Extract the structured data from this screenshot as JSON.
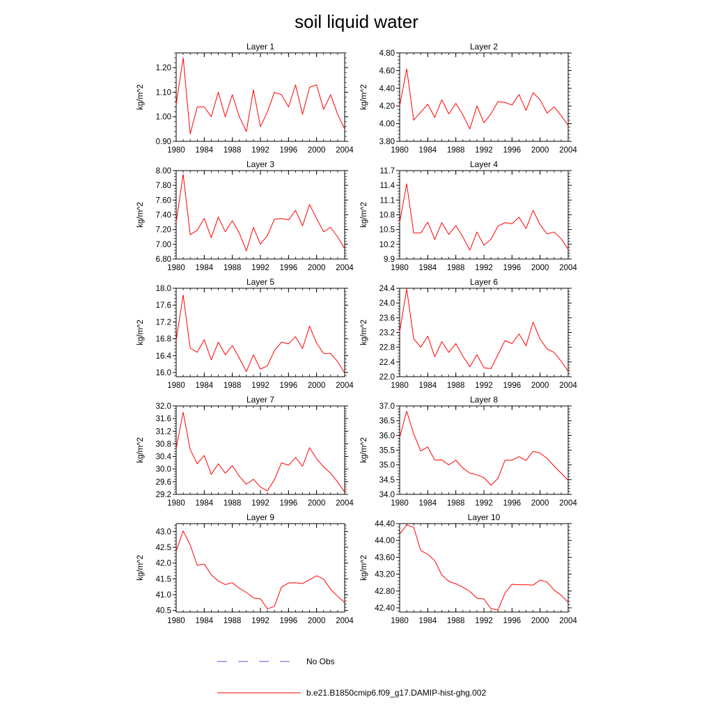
{
  "title": "soil liquid water",
  "chart_data": {
    "type": "line",
    "title": "soil liquid water",
    "x": [
      1980,
      1981,
      1982,
      1983,
      1984,
      1985,
      1986,
      1987,
      1988,
      1989,
      1990,
      1991,
      1992,
      1993,
      1994,
      1995,
      1996,
      1997,
      1998,
      1999,
      2000,
      2001,
      2002,
      2003,
      2004
    ],
    "xlim": [
      1980,
      2004
    ],
    "xticks": [
      "1980",
      "1984",
      "1988",
      "1992",
      "1996",
      "2000",
      "2004"
    ],
    "legend": {
      "placement": "bottom",
      "entries": [
        {
          "label": "No Obs",
          "color": "#5555cc",
          "style": "dashed"
        },
        {
          "label": "b.e21.B1850cmip6.f09_g17.DAMIP-hist-ghg.002",
          "color": "#ff0000",
          "style": "solid"
        }
      ]
    },
    "panels": [
      {
        "title": "Layer 1",
        "ylabel": "kg/m^2",
        "ylim": [
          0.9,
          1.26
        ],
        "yticks": [
          "0.90",
          "1.00",
          "1.10",
          "1.20"
        ],
        "series": [
          {
            "color": "#ff0000",
            "values": [
              1.05,
              1.24,
              0.93,
              1.04,
              1.04,
              1.0,
              1.1,
              1.0,
              1.09,
              1.0,
              0.94,
              1.11,
              0.96,
              1.02,
              1.1,
              1.09,
              1.04,
              1.13,
              1.01,
              1.12,
              1.13,
              1.03,
              1.09,
              1.01,
              0.95
            ]
          }
        ]
      },
      {
        "title": "Layer 2",
        "ylabel": "kg/m^2",
        "ylim": [
          3.8,
          4.8
        ],
        "yticks": [
          "3.80",
          "4.00",
          "4.20",
          "4.40",
          "4.60",
          "4.80"
        ],
        "series": [
          {
            "color": "#ff0000",
            "values": [
              4.2,
              4.62,
              4.04,
              4.13,
              4.22,
              4.07,
              4.27,
              4.11,
              4.23,
              4.1,
              3.94,
              4.2,
              4.01,
              4.11,
              4.25,
              4.24,
              4.21,
              4.33,
              4.15,
              4.35,
              4.27,
              4.12,
              4.19,
              4.09,
              3.98
            ]
          }
        ]
      },
      {
        "title": "Layer 3",
        "ylabel": "kg/m^2",
        "ylim": [
          6.8,
          8.0
        ],
        "yticks": [
          "6.80",
          "7.00",
          "7.20",
          "7.40",
          "7.60",
          "7.80",
          "8.00"
        ],
        "series": [
          {
            "color": "#ff0000",
            "values": [
              7.3,
              7.95,
              7.13,
              7.19,
              7.35,
              7.09,
              7.37,
              7.17,
              7.32,
              7.15,
              6.91,
              7.23,
              7.0,
              7.12,
              7.34,
              7.35,
              7.33,
              7.46,
              7.25,
              7.54,
              7.35,
              7.17,
              7.23,
              7.1,
              6.94
            ]
          }
        ]
      },
      {
        "title": "Layer 4",
        "ylabel": "kg/m^2",
        "ylim": [
          9.9,
          11.7
        ],
        "yticks": [
          "9.9",
          "10.2",
          "10.5",
          "10.8",
          "11.1",
          "11.4",
          "11.7"
        ],
        "series": [
          {
            "color": "#ff0000",
            "values": [
              10.65,
              11.43,
              10.43,
              10.43,
              10.65,
              10.3,
              10.64,
              10.4,
              10.58,
              10.35,
              10.08,
              10.45,
              10.18,
              10.3,
              10.57,
              10.64,
              10.62,
              10.75,
              10.52,
              10.89,
              10.6,
              10.41,
              10.45,
              10.31,
              10.1
            ]
          }
        ]
      },
      {
        "title": "Layer 5",
        "ylabel": "kg/m^2",
        "ylim": [
          15.9,
          18.0
        ],
        "yticks": [
          "16.0",
          "16.4",
          "16.8",
          "17.2",
          "17.6",
          "18.0"
        ],
        "series": [
          {
            "color": "#ff0000",
            "values": [
              16.76,
              17.84,
              16.58,
              16.48,
              16.78,
              16.3,
              16.72,
              16.42,
              16.64,
              16.34,
              16.02,
              16.42,
              16.08,
              16.16,
              16.52,
              16.72,
              16.68,
              16.85,
              16.57,
              17.1,
              16.7,
              16.45,
              16.45,
              16.26,
              15.98
            ]
          }
        ]
      },
      {
        "title": "Layer 6",
        "ylabel": "kg/m^2",
        "ylim": [
          22.0,
          24.4
        ],
        "yticks": [
          "22.0",
          "22.4",
          "22.8",
          "23.2",
          "23.6",
          "24.0",
          "24.4"
        ],
        "series": [
          {
            "color": "#ff0000",
            "values": [
              23.22,
              24.38,
              23.03,
              22.8,
              23.1,
              22.54,
              22.95,
              22.66,
              22.9,
              22.56,
              22.27,
              22.6,
              22.24,
              22.22,
              22.6,
              22.98,
              22.9,
              23.16,
              22.84,
              23.48,
              23.02,
              22.75,
              22.66,
              22.42,
              22.15
            ]
          }
        ]
      },
      {
        "title": "Layer 7",
        "ylabel": "kg/m^2",
        "ylim": [
          29.2,
          32.0
        ],
        "yticks": [
          "29.2",
          "29.6",
          "30.0",
          "30.4",
          "30.8",
          "31.2",
          "31.6",
          "32.0"
        ],
        "series": [
          {
            "color": "#ff0000",
            "values": [
              30.65,
              31.8,
              30.62,
              30.17,
              30.43,
              29.83,
              30.17,
              29.87,
              30.11,
              29.77,
              29.52,
              29.68,
              29.43,
              29.31,
              29.67,
              30.2,
              30.12,
              30.37,
              30.09,
              30.68,
              30.33,
              30.07,
              29.87,
              29.59,
              29.27
            ]
          }
        ]
      },
      {
        "title": "Layer 8",
        "ylabel": "kg/m^2",
        "ylim": [
          34.0,
          37.0
        ],
        "yticks": [
          "34.0",
          "34.5",
          "35.0",
          "35.5",
          "36.0",
          "36.5",
          "37.0"
        ],
        "series": [
          {
            "color": "#ff0000",
            "values": [
              35.93,
              36.82,
              36.05,
              35.47,
              35.61,
              35.16,
              35.17,
              35.0,
              35.16,
              34.89,
              34.72,
              34.66,
              34.57,
              34.31,
              34.54,
              35.16,
              35.16,
              35.28,
              35.15,
              35.46,
              35.4,
              35.22,
              34.96,
              34.72,
              34.47
            ]
          }
        ]
      },
      {
        "title": "Layer 9",
        "ylabel": "kg/m^2",
        "ylim": [
          40.45,
          43.25
        ],
        "yticks": [
          "40.5",
          "41.0",
          "41.5",
          "42.0",
          "42.5",
          "43.0"
        ],
        "series": [
          {
            "color": "#ff0000",
            "values": [
              42.38,
              43.02,
              42.57,
              41.93,
              41.97,
              41.63,
              41.43,
              41.32,
              41.38,
              41.2,
              41.07,
              40.9,
              40.87,
              40.55,
              40.63,
              41.24,
              41.37,
              41.38,
              41.35,
              41.47,
              41.6,
              41.49,
              41.17,
              40.95,
              40.75
            ]
          }
        ]
      },
      {
        "title": "Layer 10",
        "ylabel": "kg/m^2",
        "ylim": [
          42.3,
          44.4
        ],
        "yticks": [
          "42.40",
          "42.80",
          "43.20",
          "43.60",
          "44.00",
          "44.40"
        ],
        "series": [
          {
            "color": "#ff0000",
            "values": [
              44.15,
              44.37,
              44.31,
              43.76,
              43.67,
              43.52,
              43.18,
              43.03,
              42.97,
              42.89,
              42.79,
              42.63,
              42.61,
              42.38,
              42.35,
              42.75,
              42.96,
              42.95,
              42.95,
              42.94,
              43.06,
              43.01,
              42.82,
              42.7,
              42.53
            ]
          }
        ]
      }
    ]
  }
}
